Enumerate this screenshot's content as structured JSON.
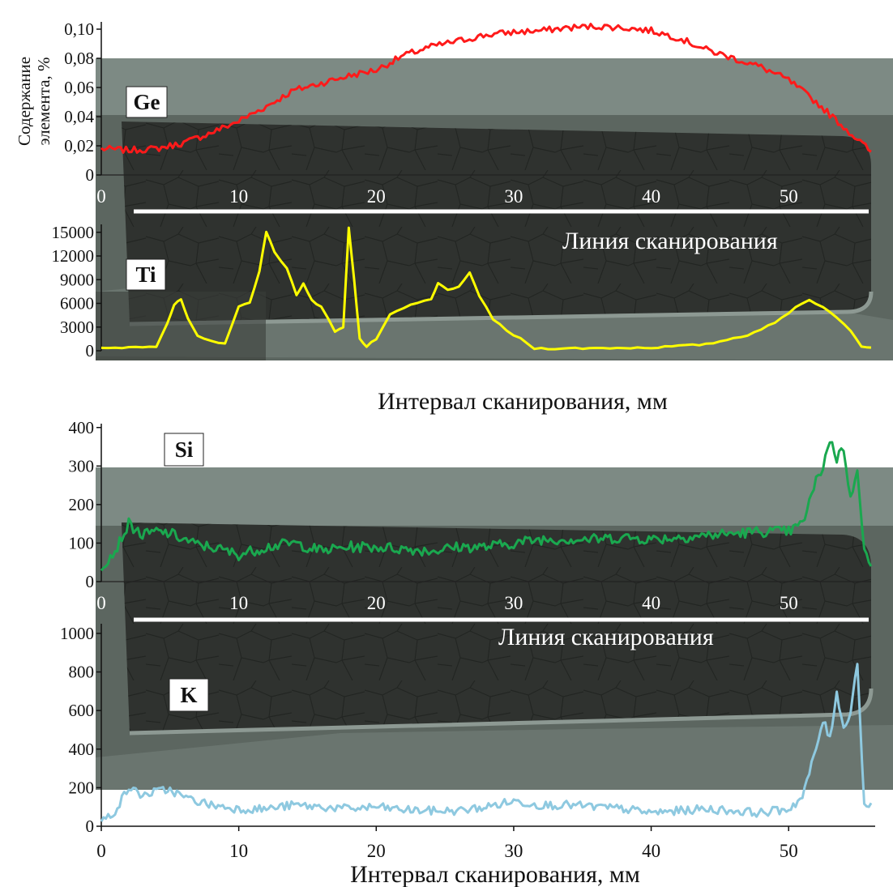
{
  "chart_data": [
    {
      "type": "line",
      "element": "Ge",
      "ylabel": "Содержание элемента, %",
      "ylabel_lines": [
        "Содержание",
        "элемента, %"
      ],
      "yticks": [
        "0",
        "0,02",
        "0,04",
        "0,06",
        "0,08",
        "0,10"
      ],
      "ylim": [
        0,
        0.105
      ],
      "xlim": [
        0,
        56
      ],
      "xticks": [
        "0",
        "10",
        "20",
        "30",
        "40",
        "50"
      ],
      "xlabel": "",
      "color": "#ff1a1a",
      "scan_line_label": "Линия сканирования",
      "x": [
        0,
        2,
        4,
        6,
        8,
        10,
        12,
        14,
        16,
        18,
        20,
        22,
        24,
        26,
        28,
        30,
        32,
        34,
        36,
        38,
        40,
        42,
        44,
        46,
        48,
        50,
        52,
        54,
        56
      ],
      "y": [
        0.018,
        0.017,
        0.018,
        0.022,
        0.029,
        0.037,
        0.047,
        0.058,
        0.063,
        0.068,
        0.072,
        0.082,
        0.088,
        0.092,
        0.096,
        0.098,
        0.099,
        0.101,
        0.102,
        0.101,
        0.099,
        0.094,
        0.086,
        0.08,
        0.074,
        0.065,
        0.05,
        0.033,
        0.016
      ]
    },
    {
      "type": "line",
      "element": "Ti",
      "yticks": [
        "0",
        "3000",
        "6000",
        "9000",
        "12000",
        "15000"
      ],
      "ylim": [
        0,
        16000
      ],
      "xlim": [
        0,
        56
      ],
      "xticks": [
        "0",
        "10",
        "20",
        "30",
        "40",
        "50"
      ],
      "xlabel": "Интервал сканирования, мм",
      "color": "#ffff00",
      "x": [
        0,
        4,
        4.8,
        5.3,
        5.8,
        6.3,
        7.0,
        8.0,
        9.0,
        10.0,
        10.8,
        11.5,
        12.0,
        12.6,
        13.5,
        14.2,
        14.7,
        15.3,
        16.0,
        17.0,
        17.6,
        18.0,
        18.4,
        18.8,
        19.3,
        20.0,
        21.0,
        22.5,
        24.0,
        24.5,
        25.2,
        26.0,
        26.8,
        27.5,
        28.5,
        29.5,
        30.5,
        31.5,
        34.0,
        40.0,
        44.0,
        47.0,
        49.0,
        50.5,
        51.5,
        53.0,
        54.5,
        55.3,
        56.0
      ],
      "y": [
        300,
        600,
        3500,
        5800,
        6500,
        4000,
        1800,
        1200,
        1000,
        5500,
        6200,
        10000,
        15000,
        12500,
        10500,
        7000,
        8500,
        6500,
        5500,
        2500,
        3000,
        15500,
        9000,
        1500,
        500,
        1500,
        4500,
        5800,
        6500,
        8500,
        7800,
        8000,
        9800,
        7000,
        4000,
        2500,
        1500,
        300,
        300,
        400,
        800,
        2000,
        3500,
        5500,
        6500,
        5000,
        2500,
        600,
        400
      ]
    },
    {
      "type": "line",
      "element": "Si",
      "yticks": [
        "0",
        "100",
        "200",
        "300",
        "400"
      ],
      "ylim": [
        0,
        410
      ],
      "xlim": [
        0,
        56
      ],
      "xticks": [
        "0",
        "10",
        "20",
        "30",
        "40",
        "50"
      ],
      "xlabel": "",
      "color": "#1aa84f",
      "scan_line_label": "Линия сканирования",
      "x": [
        0,
        1,
        2,
        3,
        4,
        5,
        6,
        7,
        8,
        10,
        12,
        14,
        16,
        18,
        20,
        22,
        24,
        26,
        28,
        30,
        32,
        34,
        36,
        38,
        40,
        42,
        44,
        46,
        48,
        50,
        51,
        52,
        52.5,
        53,
        53.5,
        54,
        54.5,
        55,
        55.5,
        56
      ],
      "y": [
        40,
        80,
        150,
        120,
        130,
        125,
        110,
        95,
        90,
        70,
        90,
        100,
        80,
        90,
        90,
        85,
        80,
        90,
        90,
        100,
        110,
        110,
        110,
        115,
        110,
        115,
        120,
        125,
        130,
        130,
        150,
        260,
        300,
        370,
        320,
        350,
        210,
        300,
        80,
        40
      ]
    },
    {
      "type": "line",
      "element": "K",
      "yticks": [
        "0",
        "200",
        "400",
        "600",
        "800",
        "1000"
      ],
      "ylim": [
        0,
        1050
      ],
      "xlim": [
        0,
        56
      ],
      "xticks": [
        "0",
        "10",
        "20",
        "30",
        "40",
        "50"
      ],
      "xlabel": "Интервал сканирования, мм",
      "color": "#8ec9e0",
      "x": [
        0,
        1,
        2,
        3,
        4,
        5,
        6,
        8,
        10,
        12,
        14,
        16,
        18,
        20,
        22,
        24,
        26,
        28,
        30,
        32,
        34,
        36,
        38,
        40,
        42,
        44,
        46,
        48,
        50,
        51,
        52,
        52.5,
        53,
        53.5,
        54,
        54.5,
        55,
        55.5,
        56
      ],
      "y": [
        20,
        80,
        200,
        160,
        180,
        190,
        150,
        110,
        90,
        90,
        110,
        100,
        90,
        100,
        85,
        80,
        80,
        100,
        130,
        110,
        110,
        100,
        90,
        70,
        80,
        90,
        80,
        70,
        90,
        150,
        400,
        550,
        450,
        700,
        500,
        600,
        850,
        100,
        120
      ]
    }
  ]
}
